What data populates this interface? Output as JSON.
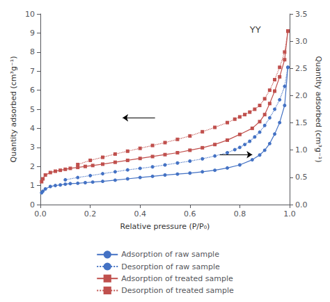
{
  "chart_data": {
    "type": "line",
    "xlabel": "Relative pressure (P/P₀)",
    "ylabel": "Quantity adsorbed (cm³g⁻¹)",
    "y2label": "Quantity adsorbed (cm³g⁻¹)",
    "xlim": [
      0,
      1.0
    ],
    "xticks": [
      {
        "value": 0,
        "label": "0.0"
      },
      0.2,
      0.4,
      0.6,
      0.8,
      {
        "value": 1.0,
        "label": "1.0"
      }
    ],
    "ylim": [
      0,
      10
    ],
    "yticks": [
      0,
      1,
      2,
      3,
      4,
      5,
      6,
      7,
      8,
      9,
      10
    ],
    "y2lim": [
      0,
      3.5
    ],
    "y2ticks": [
      {
        "value": 0,
        "label": "0.0"
      },
      0.5,
      {
        "value": 1.0,
        "label": "1.0"
      },
      1.5,
      {
        "value": 2.0,
        "label": "2.0"
      },
      2.5,
      {
        "value": 3.0,
        "label": "3.0"
      },
      3.5
    ],
    "grid": false,
    "legend": "bottom",
    "annotations": [
      {
        "text": "YY",
        "x": 0.84,
        "y": 9.4
      }
    ],
    "arrows": [
      {
        "x": [
          0.46,
          0.33
        ],
        "y": 4.55
      },
      {
        "x": [
          0.72,
          0.85
        ],
        "y": 2.62
      }
    ],
    "series": [
      {
        "name": "Adsorption of raw sample",
        "color": "#4472C4",
        "line_style": "solid",
        "marker": "circle",
        "x": [
          0.005,
          0.01,
          0.02,
          0.04,
          0.06,
          0.08,
          0.1,
          0.12,
          0.15,
          0.18,
          0.21,
          0.25,
          0.3,
          0.35,
          0.4,
          0.45,
          0.5,
          0.55,
          0.6,
          0.65,
          0.7,
          0.75,
          0.8,
          0.85,
          0.88,
          0.9,
          0.92,
          0.94,
          0.96,
          0.98,
          0.993
        ],
        "values": [
          0.62,
          0.7,
          0.82,
          0.95,
          1.0,
          1.03,
          1.07,
          1.1,
          1.12,
          1.15,
          1.18,
          1.22,
          1.28,
          1.35,
          1.42,
          1.48,
          1.55,
          1.6,
          1.65,
          1.72,
          1.8,
          1.92,
          2.08,
          2.35,
          2.6,
          2.85,
          3.2,
          3.7,
          4.3,
          5.2,
          7.2
        ]
      },
      {
        "name": "Desorption of raw sample",
        "color": "#4472C4",
        "line_style": "dotted",
        "marker": "circle",
        "x": [
          0.993,
          0.98,
          0.96,
          0.94,
          0.92,
          0.9,
          0.88,
          0.86,
          0.84,
          0.82,
          0.8,
          0.78,
          0.75,
          0.7,
          0.65,
          0.6,
          0.55,
          0.5,
          0.45,
          0.4,
          0.35,
          0.3,
          0.25,
          0.2,
          0.15,
          0.1
        ],
        "values": [
          7.2,
          6.2,
          5.5,
          5.0,
          4.55,
          4.15,
          3.8,
          3.55,
          3.32,
          3.15,
          3.0,
          2.88,
          2.72,
          2.55,
          2.4,
          2.28,
          2.18,
          2.08,
          1.98,
          1.9,
          1.82,
          1.72,
          1.62,
          1.52,
          1.42,
          1.3
        ]
      },
      {
        "name": "Adsorption of treated sample",
        "color": "#C0504D",
        "line_style": "solid",
        "marker": "square",
        "x": [
          0.005,
          0.01,
          0.02,
          0.04,
          0.06,
          0.08,
          0.1,
          0.12,
          0.15,
          0.18,
          0.21,
          0.25,
          0.3,
          0.35,
          0.4,
          0.45,
          0.5,
          0.55,
          0.6,
          0.65,
          0.7,
          0.75,
          0.8,
          0.85,
          0.88,
          0.9,
          0.92,
          0.94,
          0.96,
          0.98,
          0.993
        ],
        "values": [
          1.2,
          1.35,
          1.55,
          1.68,
          1.75,
          1.8,
          1.85,
          1.9,
          1.95,
          2.0,
          2.05,
          2.12,
          2.22,
          2.32,
          2.42,
          2.52,
          2.62,
          2.72,
          2.85,
          2.98,
          3.15,
          3.38,
          3.68,
          4.0,
          4.35,
          4.72,
          5.3,
          5.95,
          6.7,
          7.6,
          9.1
        ]
      },
      {
        "name": "Desorption of treated sample",
        "color": "#C0504D",
        "line_style": "dotted",
        "marker": "square",
        "x": [
          0.993,
          0.98,
          0.96,
          0.94,
          0.92,
          0.9,
          0.88,
          0.86,
          0.84,
          0.82,
          0.8,
          0.78,
          0.75,
          0.7,
          0.65,
          0.6,
          0.55,
          0.5,
          0.45,
          0.4,
          0.35,
          0.3,
          0.25,
          0.2,
          0.15
        ],
        "values": [
          9.1,
          8.0,
          7.2,
          6.55,
          6.0,
          5.55,
          5.2,
          5.0,
          4.85,
          4.72,
          4.6,
          4.48,
          4.3,
          4.05,
          3.82,
          3.6,
          3.42,
          3.25,
          3.1,
          2.95,
          2.8,
          2.65,
          2.48,
          2.32,
          2.1
        ]
      }
    ]
  }
}
